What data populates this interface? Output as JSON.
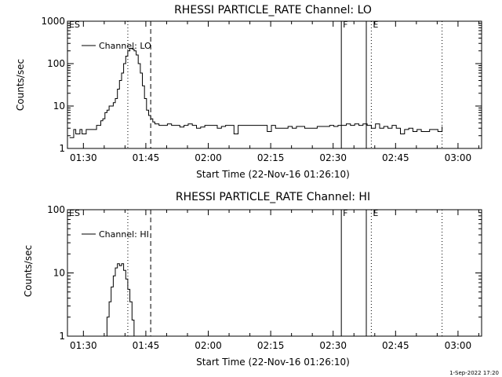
{
  "footer": "1-Sep-2022 17:20",
  "chart_data": [
    {
      "type": "line",
      "title": "RHESSI PARTICLE_RATE Channel: LO",
      "xlabel": "Start Time (22-Nov-16 01:26:10)",
      "ylabel": "Counts/sec",
      "x_unit": "minutes since 01:26:10",
      "xlim": [
        0,
        99.5
      ],
      "ylim": [
        1,
        1000
      ],
      "yscale": "log",
      "xticks": [
        3.83,
        18.83,
        33.83,
        48.83,
        63.83,
        78.83,
        93.83
      ],
      "xtick_labels": [
        "01:30",
        "01:45",
        "02:00",
        "02:15",
        "02:30",
        "02:45",
        "03:00"
      ],
      "yticks": [
        1,
        10,
        100,
        1000
      ],
      "ytick_labels": [
        "1",
        "10",
        "100",
        "1000"
      ],
      "legend": {
        "label": "Channel: LO",
        "placement": "top-left"
      },
      "markers": [
        {
          "x": 0.0,
          "style": "solid",
          "label": "ES"
        },
        {
          "x": 14.5,
          "style": "dotted",
          "label": ""
        },
        {
          "x": 20.0,
          "style": "dashed",
          "label": ""
        },
        {
          "x": 65.8,
          "style": "solid",
          "label": "F"
        },
        {
          "x": 71.8,
          "style": "solid",
          "label": ""
        },
        {
          "x": 73.0,
          "style": "dotted",
          "label": "E"
        },
        {
          "x": 90.0,
          "style": "dotted",
          "label": ""
        }
      ],
      "series": [
        {
          "name": "Channel: LO",
          "x": [
            0.5,
            1.5,
            2,
            3,
            3.5,
            4.5,
            5,
            6,
            7,
            7.5,
            8,
            8.5,
            9,
            9.5,
            10,
            10.5,
            11,
            11.5,
            12,
            12.5,
            13,
            13.5,
            14,
            14.5,
            15,
            15.5,
            16,
            16.5,
            17,
            17.5,
            18,
            18.5,
            19,
            19.5,
            20,
            20.5,
            21,
            22,
            23,
            24,
            25,
            26,
            27,
            28,
            29,
            30,
            31,
            32,
            33,
            34,
            35,
            36,
            37,
            38,
            39,
            40,
            41,
            42,
            43,
            44,
            45,
            46,
            47,
            48,
            49,
            50,
            51,
            52,
            53,
            54,
            55,
            56,
            57,
            58,
            59,
            60,
            61,
            62,
            63,
            64,
            65,
            66,
            67,
            68,
            69,
            70,
            71,
            72,
            73,
            74,
            75,
            76,
            77,
            78,
            79,
            80,
            81,
            82,
            83,
            84,
            85,
            86,
            87,
            88,
            89,
            90
          ],
          "y": [
            1.8,
            2.8,
            2.2,
            2.8,
            2.2,
            2.8,
            2.8,
            2.8,
            3.5,
            3.5,
            4.5,
            5,
            7,
            8,
            10,
            10,
            12,
            15,
            25,
            40,
            60,
            100,
            150,
            200,
            230,
            220,
            200,
            160,
            100,
            60,
            30,
            15,
            8,
            6,
            5,
            4.2,
            3.8,
            3.5,
            3.5,
            3.8,
            3.5,
            3.5,
            3.2,
            3.5,
            3.8,
            3.5,
            3.0,
            3.2,
            3.5,
            3.5,
            3.5,
            3.0,
            3.3,
            3.5,
            3.5,
            2.2,
            3.5,
            3.5,
            3.5,
            3.5,
            3.5,
            3.5,
            3.5,
            2.5,
            3.5,
            3.0,
            3.0,
            3.0,
            3.3,
            3.0,
            3.3,
            3.3,
            3.0,
            3.0,
            3.0,
            3.3,
            3.3,
            3.3,
            3.5,
            3.3,
            3.5,
            3.5,
            3.8,
            3.5,
            3.8,
            3.5,
            3.8,
            3.5,
            3.0,
            3.8,
            3.0,
            3.3,
            3.0,
            3.5,
            3.0,
            2.2,
            2.8,
            3.0,
            2.5,
            2.8,
            2.5,
            2.5,
            2.8,
            2.8,
            2.5,
            3.3
          ]
        }
      ]
    },
    {
      "type": "line",
      "title": "RHESSI PARTICLE_RATE Channel: HI",
      "xlabel": "Start Time (22-Nov-16 01:26:10)",
      "ylabel": "Counts/sec",
      "x_unit": "minutes since 01:26:10",
      "xlim": [
        0,
        99.5
      ],
      "ylim": [
        1,
        100
      ],
      "yscale": "log",
      "xticks": [
        3.83,
        18.83,
        33.83,
        48.83,
        63.83,
        78.83,
        93.83
      ],
      "xtick_labels": [
        "01:30",
        "01:45",
        "02:00",
        "02:15",
        "02:30",
        "02:45",
        "03:00"
      ],
      "yticks": [
        1,
        10,
        100
      ],
      "ytick_labels": [
        "1",
        "10",
        "100"
      ],
      "legend": {
        "label": "Channel: HI",
        "placement": "top-left"
      },
      "markers": [
        {
          "x": 0.0,
          "style": "solid",
          "label": "ES"
        },
        {
          "x": 14.5,
          "style": "dotted",
          "label": ""
        },
        {
          "x": 20.0,
          "style": "dashed",
          "label": ""
        },
        {
          "x": 65.8,
          "style": "solid",
          "label": "F"
        },
        {
          "x": 71.8,
          "style": "solid",
          "label": ""
        },
        {
          "x": 73.0,
          "style": "dotted",
          "label": "E"
        },
        {
          "x": 90.0,
          "style": "dotted",
          "label": ""
        }
      ],
      "series": [
        {
          "name": "Channel: HI",
          "x": [
            9,
            9.5,
            10,
            10.5,
            11,
            11.5,
            12,
            12.5,
            13,
            13.5,
            14,
            14.5,
            15,
            15.5,
            16
          ],
          "y": [
            1.0,
            2.0,
            3.5,
            6.0,
            9.0,
            12.0,
            14.0,
            13.0,
            14.0,
            11.0,
            8.0,
            5.5,
            3.5,
            1.8,
            1.0
          ]
        }
      ]
    }
  ]
}
